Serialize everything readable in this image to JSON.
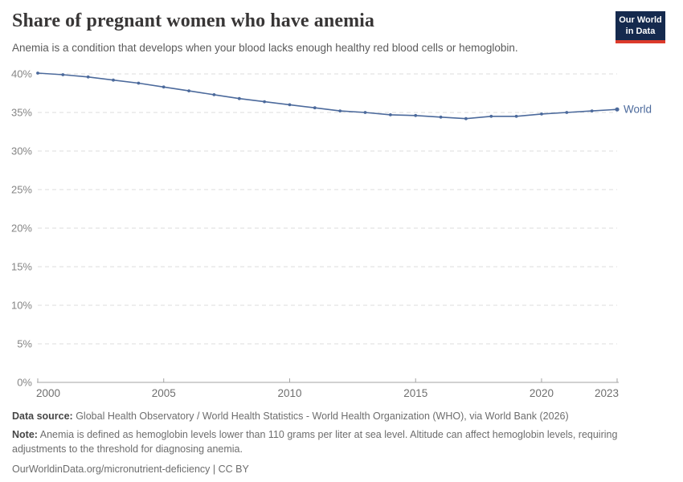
{
  "header": {
    "title": "Share of pregnant women who have anemia",
    "subtitle": "Anemia is a condition that develops when your blood lacks enough healthy red blood cells or hemoglobin.",
    "logo": {
      "line1": "Our World",
      "line2": "in Data",
      "bg_color": "#152a4e",
      "stripe_color": "#dc3a2b"
    }
  },
  "chart_data": {
    "type": "line",
    "title": "Share of pregnant women who have anemia",
    "xlabel": "",
    "ylabel": "",
    "x": [
      2000,
      2001,
      2002,
      2003,
      2004,
      2005,
      2006,
      2007,
      2008,
      2009,
      2010,
      2011,
      2012,
      2013,
      2014,
      2015,
      2016,
      2017,
      2018,
      2019,
      2020,
      2021,
      2022,
      2023
    ],
    "series": [
      {
        "name": "World",
        "color": "#4c6a9c",
        "values": [
          40.1,
          39.9,
          39.6,
          39.2,
          38.8,
          38.3,
          37.8,
          37.3,
          36.8,
          36.4,
          36.0,
          35.6,
          35.2,
          35.0,
          34.7,
          34.6,
          34.4,
          34.2,
          34.5,
          34.5,
          34.8,
          35.0,
          35.2,
          35.4
        ]
      }
    ],
    "x_ticks": [
      2000,
      2005,
      2010,
      2015,
      2020,
      2023
    ],
    "y_ticks": [
      0,
      5,
      10,
      15,
      20,
      25,
      30,
      35,
      40
    ],
    "y_tick_suffix": "%",
    "xlim": [
      2000,
      2023
    ],
    "ylim": [
      0,
      40
    ],
    "grid": "horizontal-dashed",
    "legend_position": "end-of-line-label"
  },
  "colors": {
    "grid": "#dcdcdc",
    "axis": "#a3a3a3",
    "x_tick_label": "#6f6f6f",
    "y_tick_label": "#858585"
  },
  "footer": {
    "data_source_label": "Data source:",
    "data_source_text": " Global Health Observatory / World Health Statistics - World Health Organization (WHO), via World Bank (2026)",
    "note_label": "Note:",
    "note_text": " Anemia is defined as hemoglobin levels lower than 110 grams per liter at sea level. Altitude can affect hemoglobin levels, requiring adjustments to the threshold for diagnosing anemia.",
    "link": "OurWorldinData.org/micronutrient-deficiency | CC BY"
  }
}
